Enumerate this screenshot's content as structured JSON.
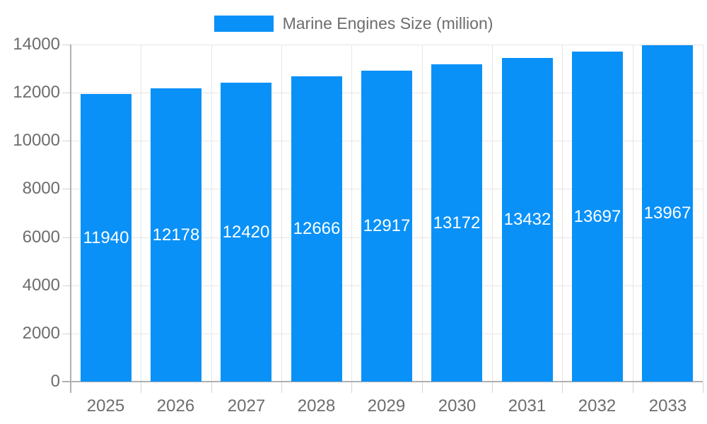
{
  "chart_data": {
    "type": "bar",
    "title": "Marine Engines Size (million)",
    "legend": {
      "label": "Marine Engines Size (million)",
      "position": "top-center"
    },
    "categories": [
      "2025",
      "2026",
      "2027",
      "2028",
      "2029",
      "2030",
      "2031",
      "2032",
      "2033"
    ],
    "series": [
      {
        "name": "Marine Engines Size (million)",
        "values": [
          11940,
          12178,
          12420,
          12666,
          12917,
          13172,
          13432,
          13697,
          13967
        ]
      }
    ],
    "value_labels_shown": true,
    "xlabel": "",
    "ylabel": "",
    "ylim": [
      0,
      14000
    ],
    "y_ticks": [
      0,
      2000,
      4000,
      6000,
      8000,
      10000,
      12000,
      14000
    ],
    "grid": true,
    "colors": {
      "bar": "#0991f8",
      "bar_label": "#ffffff",
      "axis_text": "#6d6d6d",
      "grid": "#e6e6e6",
      "axis_line": "#b0b0b0",
      "tick": "#d4d4d4",
      "background": "#ffffff"
    }
  }
}
